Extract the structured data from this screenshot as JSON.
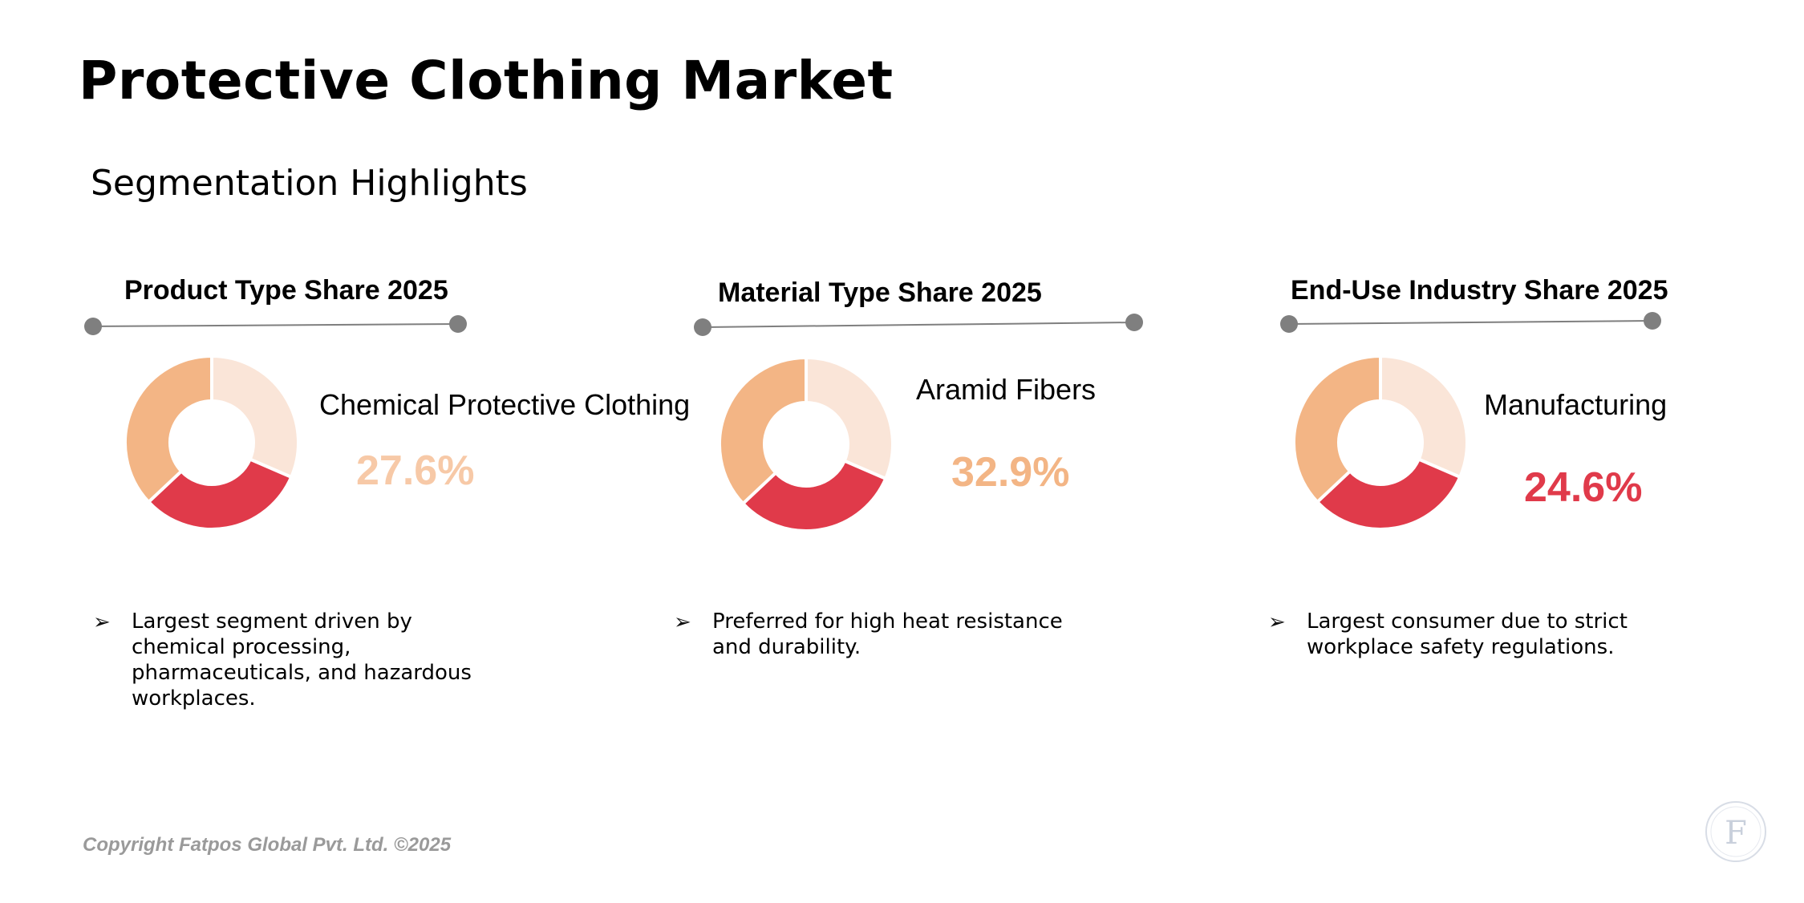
{
  "page": {
    "title": "Protective Clothing Market",
    "subtitle": "Segmentation Highlights"
  },
  "colors": {
    "light": "#fae5d8",
    "red": "#e03a4a",
    "orange": "#f3b585",
    "connector": "#7f7f7f"
  },
  "panels": [
    {
      "title": "Product Type Share 2025",
      "segment": "Chemical Protective Clothing",
      "value": "27.6%",
      "value_color": "#f7c9a7",
      "bullet": "Largest segment driven by chemical processing, pharmaceuticals, and hazardous workplaces."
    },
    {
      "title": "Material Type Share 2025",
      "segment": "Aramid Fibers",
      "value": "32.9%",
      "value_color": "#f3b585",
      "bullet": "Preferred for high heat resistance and durability."
    },
    {
      "title": "End-Use Industry Share 2025",
      "segment": "Manufacturing",
      "value": "24.6%",
      "value_color": "#e03a4a",
      "bullet": "Largest consumer due to strict workplace safety regulations."
    }
  ],
  "chart_data": [
    {
      "type": "pie",
      "title": "Product Type Share 2025",
      "highlight": {
        "label": "Chemical Protective Clothing",
        "value": 27.6
      }
    },
    {
      "type": "pie",
      "title": "Material Type Share 2025",
      "highlight": {
        "label": "Aramid Fibers",
        "value": 32.9
      }
    },
    {
      "type": "pie",
      "title": "End-Use Industry Share 2025",
      "highlight": {
        "label": "Manufacturing",
        "value": 24.6
      }
    }
  ],
  "footer": {
    "copyright": "Copyright Fatpos Global Pvt. Ltd. ©2025"
  },
  "logo": {
    "icon": "fatpos-logo-icon",
    "letter": "F"
  }
}
